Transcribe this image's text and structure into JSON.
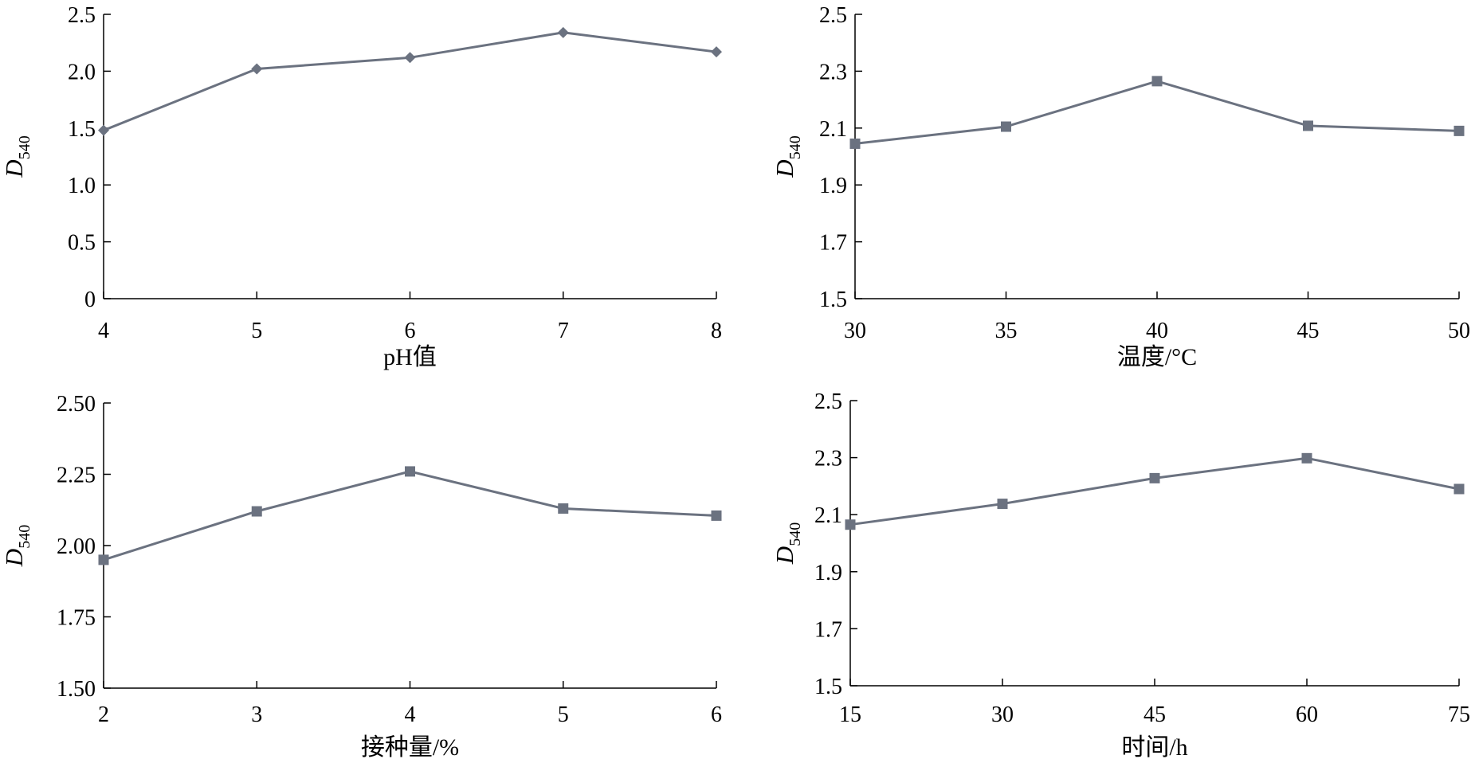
{
  "series_color": "#6b7280",
  "chart_data": [
    {
      "type": "line",
      "marker": "diamond",
      "x": [
        4,
        5,
        6,
        7,
        8
      ],
      "y": [
        1.48,
        2.02,
        2.12,
        2.34,
        2.17
      ],
      "xlabel": "pH值",
      "ylabel": {
        "main": "D",
        "sub": "540"
      },
      "xticks": [
        "4",
        "5",
        "6",
        "7",
        "8"
      ],
      "yticks": [
        "0",
        "0.5",
        "1.0",
        "1.5",
        "2.0",
        "2.5"
      ],
      "xlim": [
        4,
        8
      ],
      "ylim": [
        0,
        2.5
      ],
      "grid": false,
      "legend": "none"
    },
    {
      "type": "line",
      "marker": "square",
      "x": [
        30,
        35,
        40,
        45,
        50
      ],
      "y": [
        2.045,
        2.105,
        2.265,
        2.108,
        2.09
      ],
      "xlabel": "温度/°C",
      "ylabel": {
        "main": "D",
        "sub": "540"
      },
      "xticks": [
        "30",
        "35",
        "40",
        "45",
        "50"
      ],
      "yticks": [
        "1.5",
        "1.7",
        "1.9",
        "2.1",
        "2.3",
        "2.5"
      ],
      "xlim": [
        30,
        50
      ],
      "ylim": [
        1.5,
        2.5
      ],
      "grid": false,
      "legend": "none"
    },
    {
      "type": "line",
      "marker": "square",
      "x": [
        2,
        3,
        4,
        5,
        6
      ],
      "y": [
        1.95,
        2.12,
        2.26,
        2.13,
        2.105
      ],
      "xlabel": "接种量/%",
      "ylabel": {
        "main": "D",
        "sub": "540"
      },
      "xticks": [
        "2",
        "3",
        "4",
        "5",
        "6"
      ],
      "yticks": [
        "1.50",
        "1.75",
        "2.00",
        "2.25",
        "2.50"
      ],
      "xlim": [
        2,
        6
      ],
      "ylim": [
        1.5,
        2.5
      ],
      "grid": false,
      "legend": "none"
    },
    {
      "type": "line",
      "marker": "square",
      "x": [
        15,
        30,
        45,
        60,
        75
      ],
      "y": [
        2.065,
        2.138,
        2.228,
        2.298,
        2.19
      ],
      "xlabel": "时间/h",
      "ylabel": {
        "main": "D",
        "sub": "540"
      },
      "xticks": [
        "15",
        "30",
        "45",
        "60",
        "75"
      ],
      "yticks": [
        "1.5",
        "1.7",
        "1.9",
        "2.1",
        "2.3",
        "2.5"
      ],
      "xlim": [
        15,
        75
      ],
      "ylim": [
        1.5,
        2.5
      ],
      "grid": false,
      "legend": "none"
    }
  ]
}
